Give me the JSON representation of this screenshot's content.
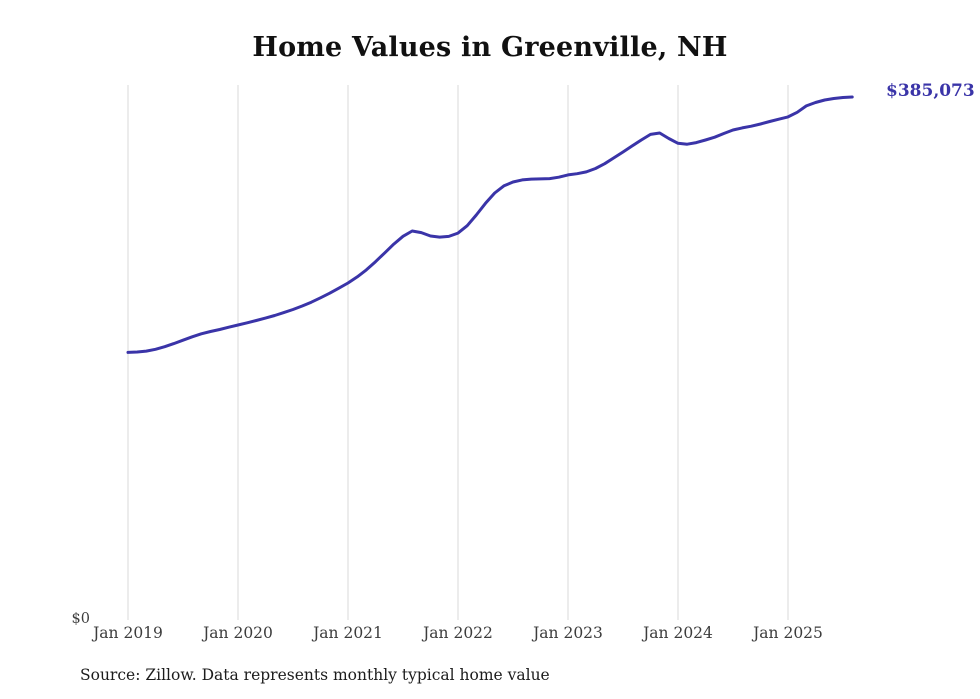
{
  "title": "Home Values in Greenville, NH",
  "y_zero_label": "$0",
  "end_label": "$385,073",
  "source": "Source: Zillow. Data represents monthly typical home value",
  "colors": {
    "line": "#3a34a8",
    "gridline": "#d8d8d8",
    "end_label": "#3a34a8"
  },
  "chart_data": {
    "type": "line",
    "title": "Home Values in Greenville, NH",
    "xlabel": "",
    "ylabel": "",
    "ylim": [
      0,
      395000
    ],
    "grid": "vertical",
    "legend_position": "none",
    "end_value": 385073,
    "x_tick_labels": [
      "Jan 2019",
      "Jan 2020",
      "Jan 2021",
      "Jan 2022",
      "Jan 2023",
      "Jan 2024",
      "Jan 2025"
    ],
    "series": [
      {
        "name": "Typical home value",
        "x": [
          "2019-01",
          "2019-02",
          "2019-03",
          "2019-04",
          "2019-05",
          "2019-06",
          "2019-07",
          "2019-08",
          "2019-09",
          "2019-10",
          "2019-11",
          "2019-12",
          "2020-01",
          "2020-02",
          "2020-03",
          "2020-04",
          "2020-05",
          "2020-06",
          "2020-07",
          "2020-08",
          "2020-09",
          "2020-10",
          "2020-11",
          "2020-12",
          "2021-01",
          "2021-02",
          "2021-03",
          "2021-04",
          "2021-05",
          "2021-06",
          "2021-07",
          "2021-08",
          "2021-09",
          "2021-10",
          "2021-11",
          "2021-12",
          "2022-01",
          "2022-02",
          "2022-03",
          "2022-04",
          "2022-05",
          "2022-06",
          "2022-07",
          "2022-08",
          "2022-09",
          "2022-10",
          "2022-11",
          "2022-12",
          "2023-01",
          "2023-02",
          "2023-03",
          "2023-04",
          "2023-05",
          "2023-06",
          "2023-07",
          "2023-08",
          "2023-09",
          "2023-10",
          "2023-11",
          "2023-12",
          "2024-01",
          "2024-02",
          "2024-03",
          "2024-04",
          "2024-05",
          "2024-06",
          "2024-07",
          "2024-08",
          "2024-09",
          "2024-10",
          "2024-11",
          "2024-12",
          "2025-01",
          "2025-02",
          "2025-03",
          "2025-04",
          "2025-05",
          "2025-06",
          "2025-07",
          "2025-08"
        ],
        "values": [
          197000,
          197300,
          198000,
          199300,
          201200,
          203500,
          206000,
          208500,
          210700,
          212400,
          213900,
          215600,
          217200,
          218800,
          220500,
          222300,
          224200,
          226300,
          228600,
          231200,
          234000,
          237200,
          240600,
          244300,
          248100,
          252600,
          257800,
          263800,
          270300,
          276800,
          282500,
          286400,
          285200,
          282700,
          281900,
          282400,
          284900,
          290300,
          298200,
          306800,
          314400,
          319600,
          322500,
          324000,
          324600,
          324800,
          325000,
          326000,
          327700,
          328600,
          329900,
          332400,
          336000,
          340200,
          344600,
          349100,
          353400,
          357500,
          358600,
          354500,
          351000,
          350300,
          351500,
          353400,
          355500,
          358200,
          360800,
          362300,
          363600,
          365200,
          367000,
          368700,
          370400,
          373800,
          378500,
          381000,
          382900,
          384000,
          384700,
          385073
        ]
      }
    ]
  }
}
